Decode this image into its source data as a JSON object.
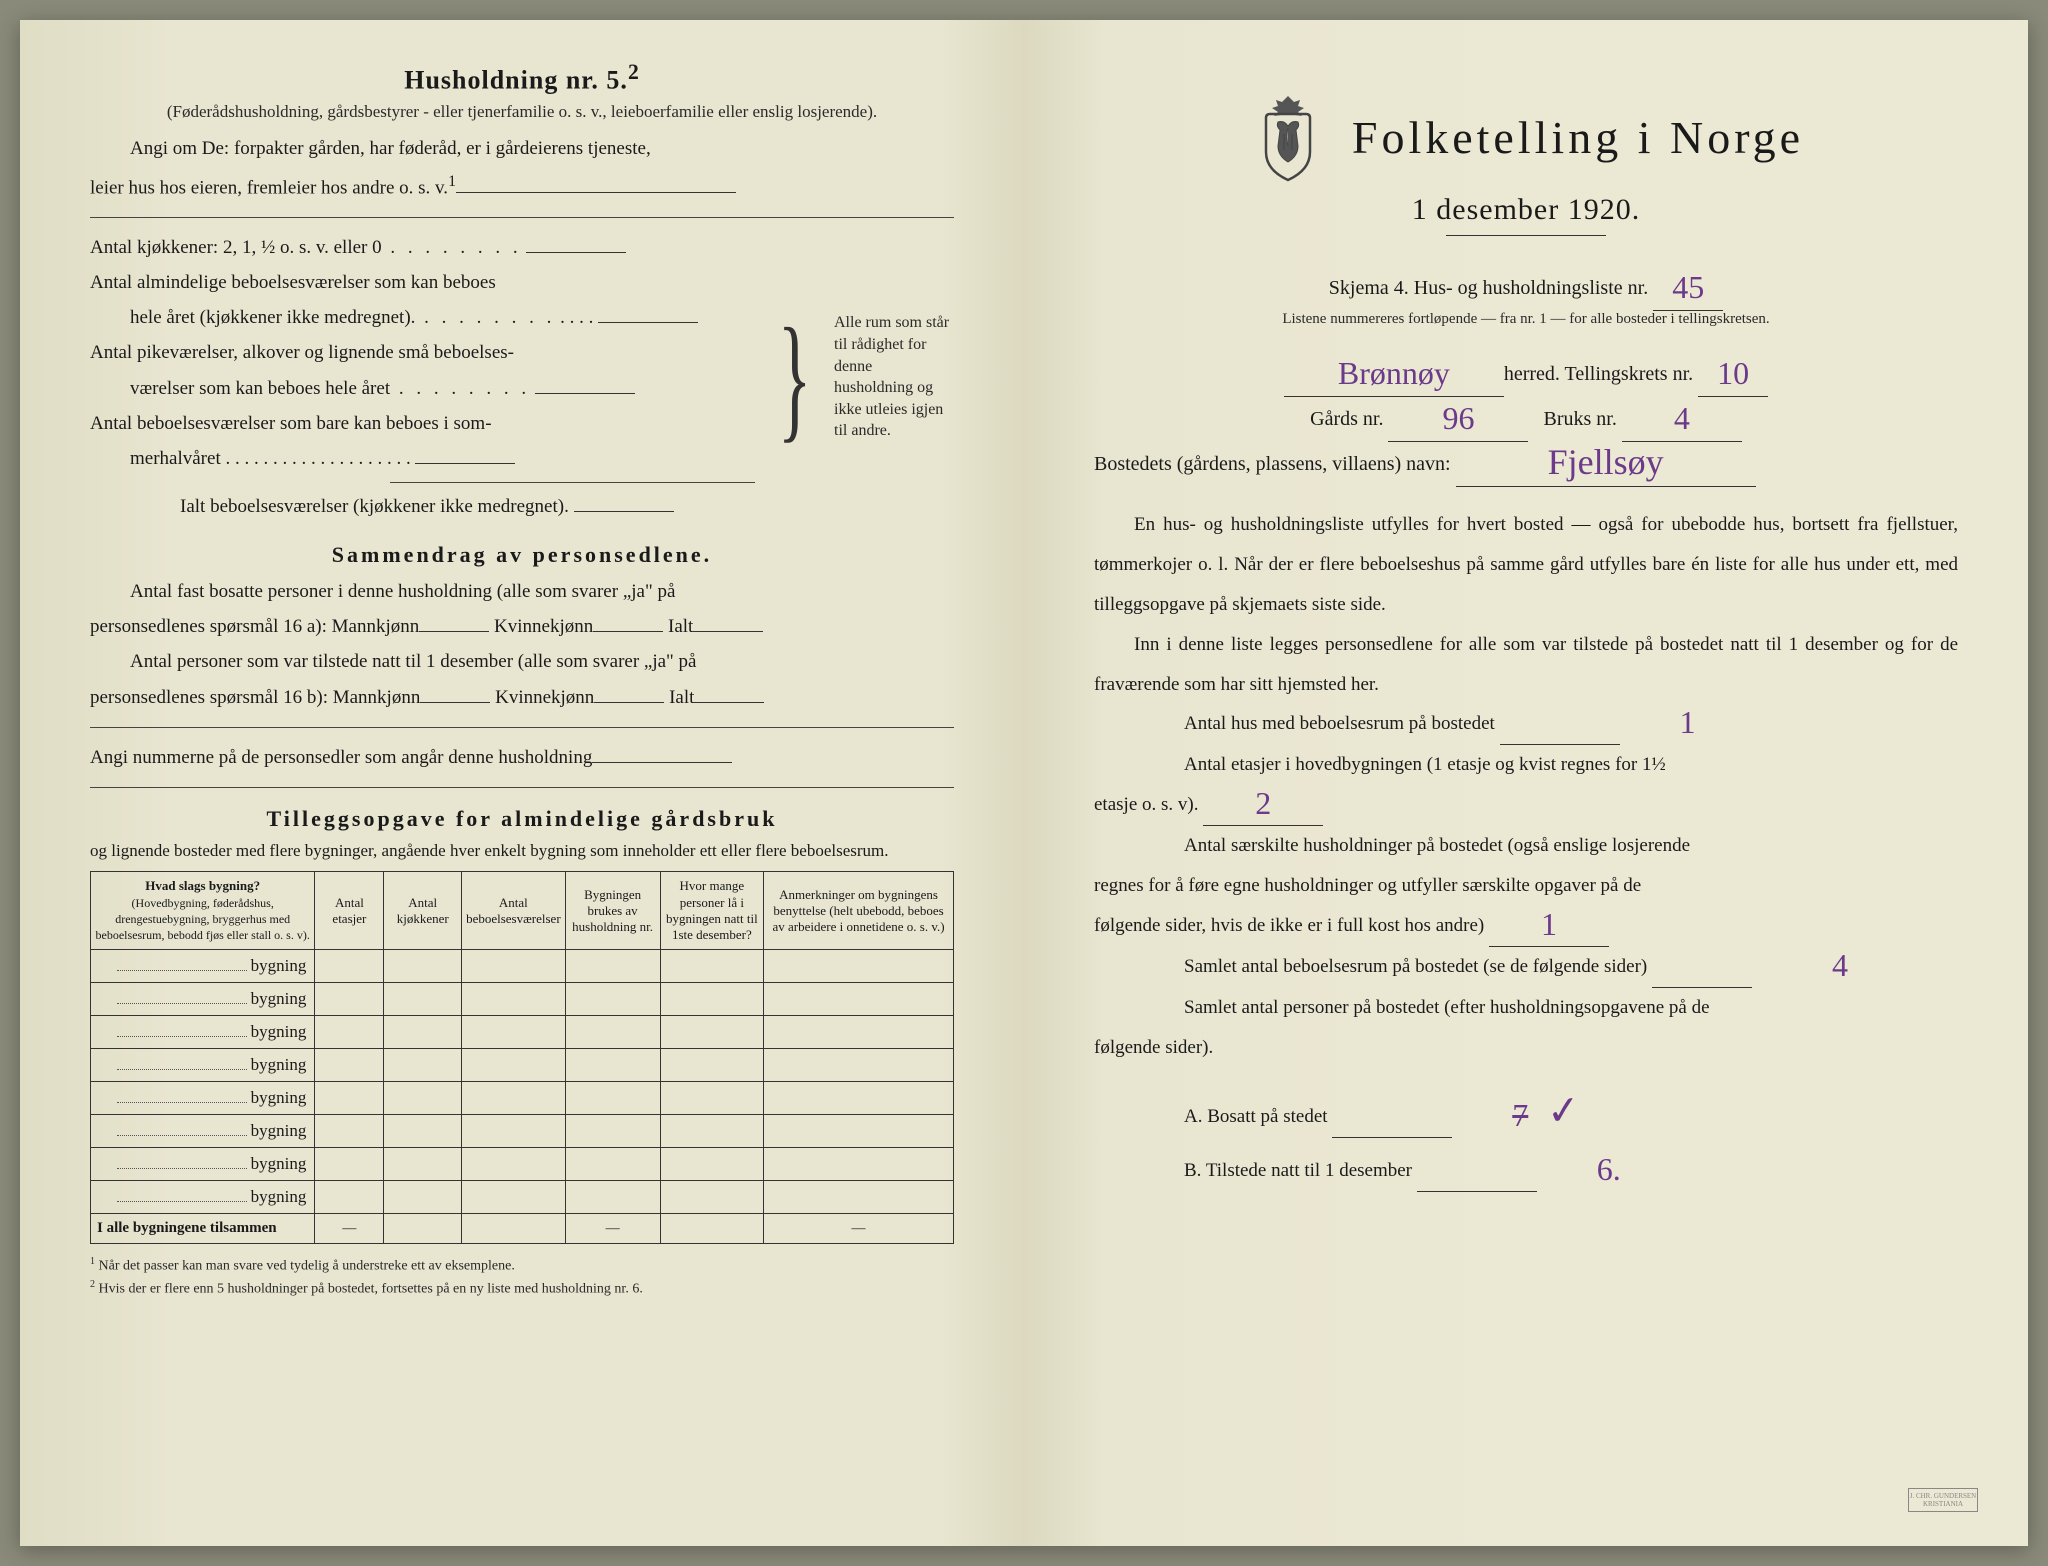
{
  "left": {
    "heading": "Husholdning nr. 5.",
    "heading_sup": "2",
    "sub1": "(Føderådshusholdning, gårdsbestyrer - eller tjenerfamilie o. s. v., leieboerfamilie eller enslig losjerende).",
    "para1a": "Angi om De:  forpakter gården, har føderåd, er i gårdeierens tjeneste,",
    "para1b": "leier hus hos eieren, fremleier hos andre o. s. v.",
    "para1b_sup": "1",
    "kjokkener": "Antal kjøkkener: 2, 1, ½ o. s. v. eller 0",
    "alm1": "Antal almindelige beboelsesværelser som kan beboes",
    "alm2": "hele året (kjøkkener ikke medregnet).",
    "pike1": "Antal pikeværelser, alkover og lignende små beboelses-",
    "pike2": "værelser som kan beboes hele året",
    "som1": "Antal beboelsesværelser som bare kan beboes i som-",
    "som2": "merhalvåret",
    "ialt": "Ialt beboelsesværelser  (kjøkkener ikke medregnet).",
    "brace_text": "Alle rum som står til rådighet for denne husholdning og ikke utleies igjen til andre.",
    "sammendrag_title": "Sammendrag av personsedlene.",
    "s_p1": "Antal fast bosatte personer i denne husholdning (alle som svarer „ja\" på",
    "s_p2": "personsedlenes spørsmål 16 a): Mannkjønn",
    "s_kv": "Kvinnekjønn",
    "s_ialt": "Ialt",
    "s_p3": "Antal personer som var tilstede natt til 1 desember (alle som svarer „ja\" på",
    "s_p4": "personsedlenes spørsmål 16 b): Mannkjønn",
    "s_num": "Angi nummerne på de personsedler som angår denne husholdning",
    "tillegg_title": "Tilleggsopgave for almindelige gårdsbruk",
    "tillegg_sub": "og lignende bosteder med flere bygninger, angående hver enkelt bygning som inneholder ett eller flere beboelsesrum.",
    "th1a": "Hvad slags bygning?",
    "th1b": "(Hovedbygning, føderådshus, drengestuebygning, bryggerhus med beboelsesrum, bebodd fjøs eller stall o. s. v).",
    "th2": "Antal etasjer",
    "th3": "Antal kjøkkener",
    "th4": "Antal beboelsesværelser",
    "th5": "Bygningen brukes av husholdning nr.",
    "th6": "Hvor mange personer lå i bygningen natt til 1ste desember?",
    "th7": "Anmerkninger om bygningens benyttelse (helt ubebodd, beboes av arbeidere i onnetidene o. s. v.)",
    "bygning_label": "bygning",
    "total_row": "I alle bygningene tilsammen",
    "fn1": "Når det passer kan man svare ved tydelig å understreke ett av eksemplene.",
    "fn2": "Hvis der er flere enn 5 husholdninger på bostedet, fortsettes på en ny liste med husholdning nr. 6."
  },
  "right": {
    "title": "Folketelling  i  Norge",
    "date": "1 desember 1920.",
    "skjema": "Skjema 4.  Hus- og husholdningsliste nr.",
    "skjema_val": "45",
    "listnote": "Listene nummereres fortløpende — fra nr. 1 — for alle bosteder i tellingskretsen.",
    "herred_val": "Brønnøy",
    "herred_label": "herred.   Tellingskrets nr.",
    "krets_val": "10",
    "gard_label": "Gårds nr.",
    "gard_val": "96",
    "bruk_label": "Bruks nr.",
    "bruk_val": "4",
    "bosted_label": "Bostedets (gårdens, plassens, villaens) navn:",
    "bosted_val": "Fjellsøy",
    "p1": "En hus- og husholdningsliste utfylles for hvert bosted — også for ubebodde hus, bortsett fra fjellstuer, tømmerkojer o. l.  Når der er flere beboelseshus på samme gård utfylles bare én liste for alle hus under ett, med tilleggsopgave på skjemaets siste side.",
    "p2": "Inn i denne liste legges personsedlene for alle som var tilstede på bostedet natt til 1 desember og for de fraværende som har sitt hjemsted her.",
    "q1": "Antal hus med beboelsesrum på bostedet",
    "q1_val": "1",
    "q2a": "Antal etasjer i hovedbygningen (1 etasje og kvist regnes for 1½",
    "q2b": "etasje o. s. v).",
    "q2_val": "2",
    "q3a": "Antal særskilte husholdninger på bostedet (også enslige losjerende",
    "q3b": "regnes for å føre egne husholdninger og utfyller særskilte opgaver på de",
    "q3c": "følgende sider, hvis de ikke er i full kost hos andre)",
    "q3_val": "1",
    "q4": "Samlet antal beboelsesrum på bostedet (se de følgende sider)",
    "q4_val": "4",
    "q5a": "Samlet antal personer på bostedet (efter husholdningsopgavene på de",
    "q5b": "følgende sider).",
    "qA": "A.  Bosatt på stedet",
    "qA_val": "7",
    "qB": "B.  Tilstede natt til 1 desember",
    "qB_val": "6."
  },
  "style": {
    "bg_paper": "#e8e5d0",
    "text_color": "#1a1a1a",
    "handwriting_color": "#6b3a8a",
    "line_color": "#333333",
    "title_fontsize": 46,
    "body_fontsize": 19,
    "table_fontsize": 14,
    "doc_width": 2048,
    "doc_height": 1526
  }
}
